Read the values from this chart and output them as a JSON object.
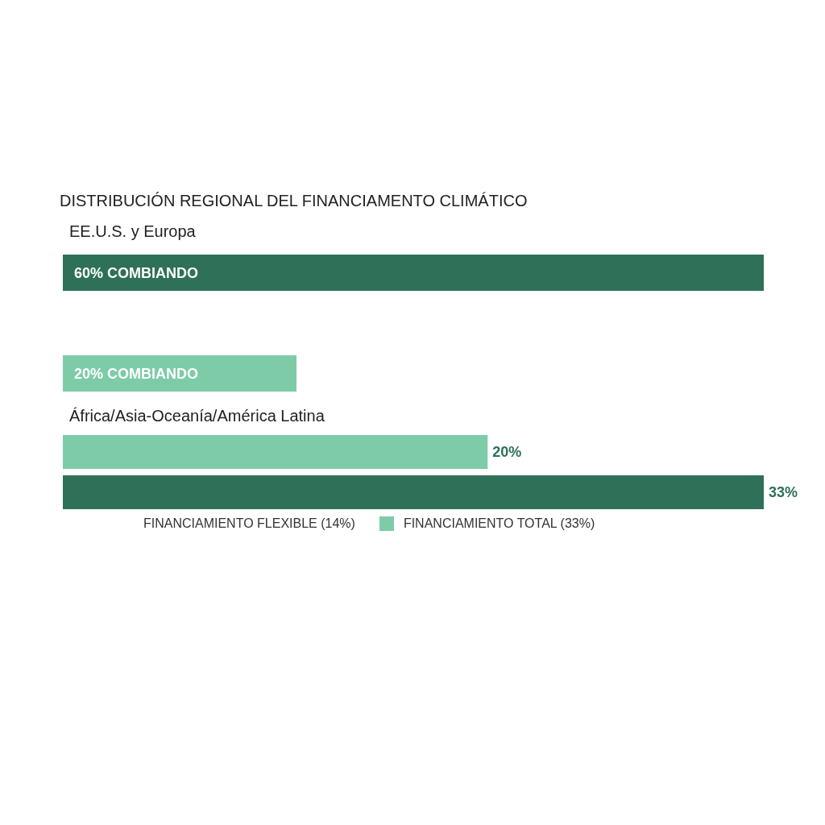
{
  "chart_data": [
    {
      "type": "bar",
      "orientation": "horizontal",
      "title": "DISTRIBUCIÓN REGIONAL DEL FINANCIAMENTO CLIMÁTICO",
      "categories": [
        "EE.U.S. y Europa",
        "África/Asia-Oceanía/América Latina"
      ],
      "values": [
        60,
        20
      ],
      "colors": [
        "#2e7058",
        "#7ecba8"
      ],
      "value_labels": [
        "60% COMBIANDO",
        "20% COMBIANDO"
      ]
    },
    {
      "type": "bar",
      "orientation": "horizontal",
      "categories": [
        null,
        null
      ],
      "values": [
        20,
        33
      ],
      "colors": [
        "#7ecba8",
        "#2e7058"
      ],
      "value_labels": [
        "20%",
        "33%"
      ],
      "annotations": [
        "FINANCIAMIENTO FLEXIBLE (14%)",
        "FINANCIAMIENTO TOTAL (33%)"
      ]
    }
  ]
}
